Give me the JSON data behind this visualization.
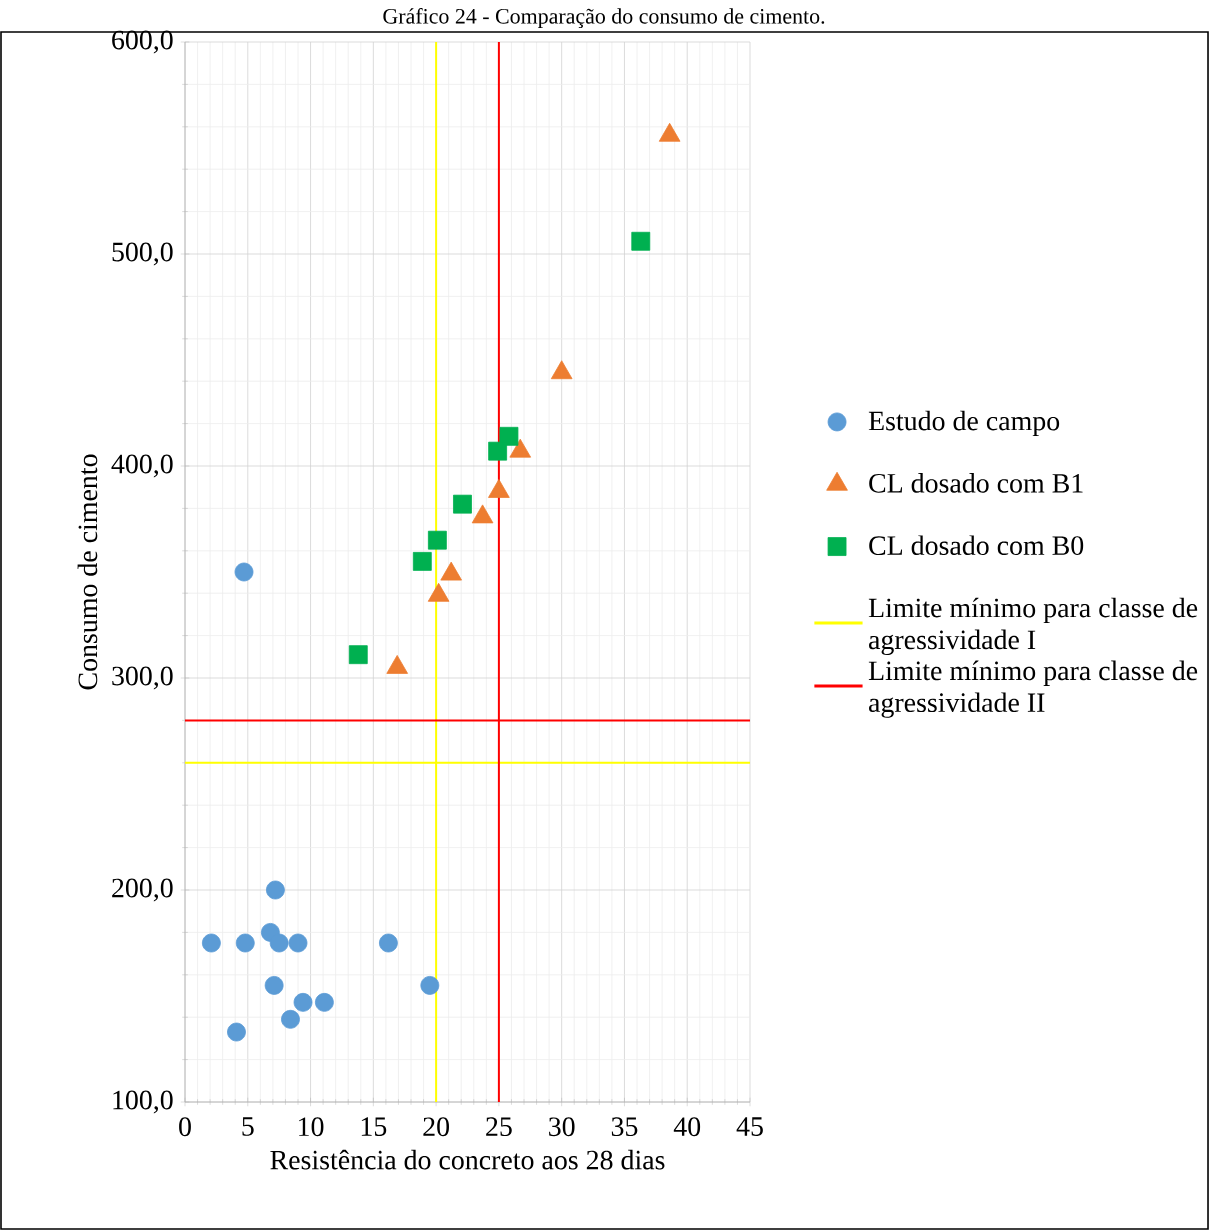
{
  "chart_data": {
    "type": "scatter",
    "title": "Gráfico 24 - Comparação do consumo de cimento.",
    "xlabel": "Resistência do concreto aos 28 dias",
    "ylabel": "Consumo de cimento",
    "xlim": [
      0,
      45
    ],
    "ylim": [
      100,
      600
    ],
    "xticks": [
      0,
      5,
      10,
      15,
      20,
      25,
      30,
      35,
      40,
      45
    ],
    "yticks": [
      {
        "value": 100,
        "label": "100,0"
      },
      {
        "value": 200,
        "label": "200,0"
      },
      {
        "value": 300,
        "label": "300,0"
      },
      {
        "value": 400,
        "label": "400,0"
      },
      {
        "value": 500,
        "label": "500,0"
      },
      {
        "value": 600,
        "label": "600,0"
      }
    ],
    "grid": true,
    "legend": "right",
    "series": [
      {
        "name": "Estudo de campo",
        "color": "#5b9bd5",
        "marker": "circle",
        "x": [
          4.7,
          7.2,
          2.1,
          4.8,
          6.8,
          7.5,
          9.0,
          16.2,
          7.1,
          19.5,
          9.4,
          11.1,
          8.4,
          4.1
        ],
        "values": [
          350,
          200,
          175,
          175,
          180,
          175,
          175,
          175,
          155,
          155,
          147,
          147,
          139,
          133
        ]
      },
      {
        "name": "CL dosado com B1",
        "color": "#ed7d31",
        "marker": "triangle",
        "x": [
          38.6,
          30.0,
          26.7,
          25.0,
          23.7,
          21.2,
          20.2,
          16.9
        ],
        "values": [
          556,
          444,
          407,
          388,
          376,
          349,
          339,
          305
        ]
      },
      {
        "name": "CL dosado com B0",
        "color": "#00b050",
        "marker": "square",
        "x": [
          36.3,
          25.8,
          24.9,
          22.1,
          20.1,
          18.9,
          13.8
        ],
        "values": [
          506,
          414,
          407,
          382,
          365,
          355,
          311
        ]
      },
      {
        "name": "Limite mínimo para classe de agressividade I",
        "type": "line",
        "color": "#ffff00",
        "marker": "none",
        "x": [
          20,
          20,
          null,
          0,
          45
        ],
        "values": [
          100,
          600,
          null,
          260,
          260
        ]
      },
      {
        "name": "Limite mínimo para classe de agressividade II",
        "type": "line",
        "color": "#ff0000",
        "marker": "none",
        "x": [
          25,
          25,
          null,
          0,
          45
        ],
        "values": [
          100,
          600,
          null,
          280,
          280
        ]
      }
    ]
  }
}
